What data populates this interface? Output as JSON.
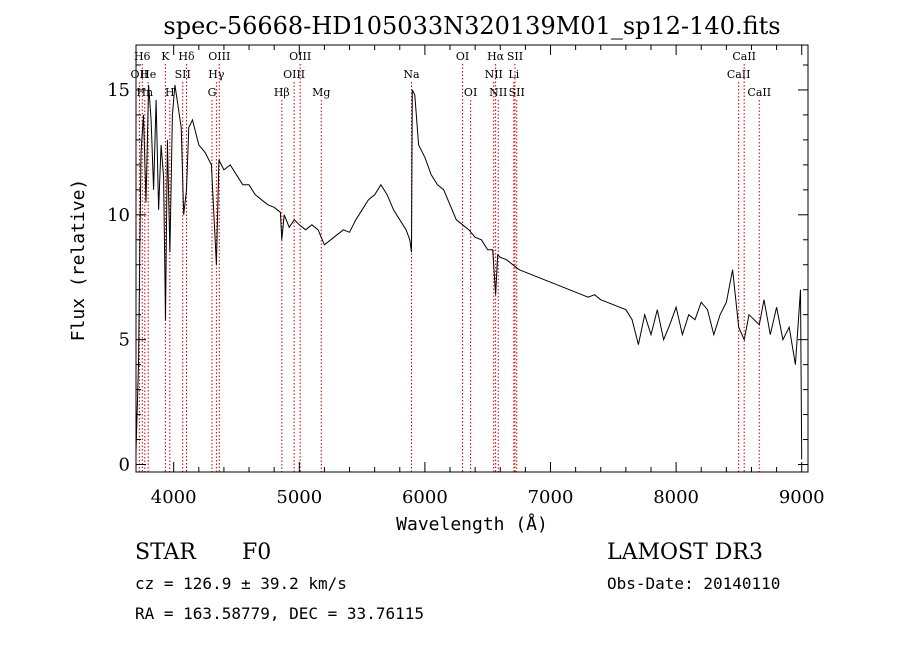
{
  "chart_data": {
    "type": "line",
    "title": "spec-56668-HD105033N320139M01_sp12-140.fits",
    "xlabel": "Wavelength (Å)",
    "ylabel": "Flux (relative)",
    "xlim": [
      3700,
      9050
    ],
    "ylim": [
      -0.3,
      16.8
    ],
    "xticks": [
      4000,
      5000,
      6000,
      7000,
      8000,
      9000
    ],
    "yticks": [
      0,
      5,
      10,
      15
    ],
    "grid": false,
    "series": [
      {
        "x": [
          3700,
          3720,
          3740,
          3760,
          3780,
          3800,
          3820,
          3840,
          3860,
          3880,
          3900,
          3920,
          3935,
          3950,
          3970,
          3990,
          4010,
          4030,
          4060,
          4080,
          4102,
          4120,
          4150,
          4200,
          4250,
          4300,
          4340,
          4360,
          4400,
          4450,
          4500,
          4550,
          4600,
          4650,
          4700,
          4750,
          4800,
          4850,
          4861,
          4880,
          4920,
          4960,
          5000,
          5050,
          5100,
          5150,
          5200,
          5250,
          5300,
          5350,
          5400,
          5450,
          5500,
          5550,
          5600,
          5650,
          5700,
          5750,
          5800,
          5850,
          5880,
          5893,
          5900,
          5920,
          5950,
          6000,
          6050,
          6100,
          6150,
          6200,
          6250,
          6300,
          6350,
          6400,
          6450,
          6500,
          6540,
          6563,
          6580,
          6600,
          6650,
          6700,
          6750,
          6800,
          6850,
          6900,
          6950,
          7000,
          7050,
          7100,
          7150,
          7200,
          7250,
          7300,
          7350,
          7400,
          7450,
          7500,
          7550,
          7600,
          7650,
          7700,
          7750,
          7800,
          7850,
          7900,
          7950,
          8000,
          8050,
          8100,
          8150,
          8200,
          8250,
          8300,
          8350,
          8400,
          8450,
          8498,
          8542,
          8580,
          8662,
          8700,
          8750,
          8800,
          8850,
          8900,
          8950,
          8990,
          9000
        ],
        "y": [
          0.5,
          4.0,
          12.5,
          14.0,
          10.5,
          15.2,
          13.8,
          11.0,
          14.6,
          10.2,
          12.8,
          11.5,
          5.8,
          13.0,
          8.5,
          14.0,
          15.2,
          14.5,
          13.5,
          10.0,
          11.0,
          13.5,
          13.8,
          12.8,
          12.5,
          12.0,
          8.0,
          12.2,
          11.8,
          12.0,
          11.6,
          11.2,
          11.2,
          10.8,
          10.6,
          10.4,
          10.3,
          10.1,
          9.0,
          10.0,
          9.5,
          9.8,
          9.6,
          9.4,
          9.6,
          9.4,
          8.8,
          9.0,
          9.2,
          9.4,
          9.3,
          9.8,
          10.2,
          10.6,
          10.8,
          11.2,
          10.8,
          10.2,
          9.8,
          9.4,
          9.0,
          8.5,
          15.0,
          14.8,
          12.8,
          12.3,
          11.6,
          11.2,
          11.0,
          10.4,
          9.8,
          9.6,
          9.4,
          9.1,
          9.0,
          8.6,
          8.6,
          6.8,
          8.4,
          8.3,
          8.2,
          8.0,
          7.8,
          7.7,
          7.6,
          7.5,
          7.4,
          7.3,
          7.2,
          7.1,
          7.0,
          6.9,
          6.8,
          6.7,
          6.8,
          6.6,
          6.5,
          6.4,
          6.3,
          6.2,
          5.8,
          4.8,
          6.0,
          5.2,
          6.2,
          5.0,
          5.6,
          6.3,
          5.2,
          6.0,
          5.8,
          6.5,
          6.2,
          5.2,
          6.0,
          6.5,
          7.8,
          5.5,
          5.0,
          6.0,
          5.6,
          6.6,
          5.2,
          6.3,
          5.0,
          5.5,
          4.0,
          7.0,
          0.2
        ]
      }
    ],
    "lines": [
      {
        "label": "OII",
        "x": 3727,
        "row": 2
      },
      {
        "label": "H6",
        "x": 3750,
        "row": 1
      },
      {
        "label": "Hn",
        "x": 3770,
        "row": 3
      },
      {
        "label": "He",
        "x": 3797,
        "row": 2
      },
      {
        "label": "K",
        "x": 3934,
        "row": 1
      },
      {
        "label": "H",
        "x": 3969,
        "row": 3
      },
      {
        "label": "SII",
        "x": 4072,
        "row": 2
      },
      {
        "label": "Hδ",
        "x": 4102,
        "row": 1
      },
      {
        "label": "OIII",
        "x": 4363,
        "row": 1
      },
      {
        "label": "Hγ",
        "x": 4340,
        "row": 2
      },
      {
        "label": "G",
        "x": 4305,
        "row": 3
      },
      {
        "label": "Hβ",
        "x": 4861,
        "row": 3
      },
      {
        "label": "OIII",
        "x": 4959,
        "row": 2
      },
      {
        "label": "OIII",
        "x": 5007,
        "row": 1
      },
      {
        "label": "Mg",
        "x": 5175,
        "row": 3
      },
      {
        "label": "Na",
        "x": 5893,
        "row": 2
      },
      {
        "label": "OI",
        "x": 6300,
        "row": 1
      },
      {
        "label": "OI",
        "x": 6364,
        "row": 3
      },
      {
        "label": "Hα",
        "x": 6563,
        "row": 1
      },
      {
        "label": "NII",
        "x": 6548,
        "row": 2
      },
      {
        "label": "NII",
        "x": 6584,
        "row": 3
      },
      {
        "label": "SII",
        "x": 6717,
        "row": 1
      },
      {
        "label": "Li",
        "x": 6708,
        "row": 2
      },
      {
        "label": "SII",
        "x": 6731,
        "row": 3
      },
      {
        "label": "CaII",
        "x": 8498,
        "row": 2
      },
      {
        "label": "CaII",
        "x": 8542,
        "row": 1
      },
      {
        "label": "CaII",
        "x": 8662,
        "row": 3
      }
    ]
  },
  "info": {
    "class_label": "STAR",
    "subclass": "F0",
    "cz": "cz = 126.9 ± 39.2 km/s",
    "coords": "RA = 163.58779, DEC =  33.76115",
    "survey": "LAMOST DR3",
    "obs_date": "Obs-Date: 20140110"
  }
}
